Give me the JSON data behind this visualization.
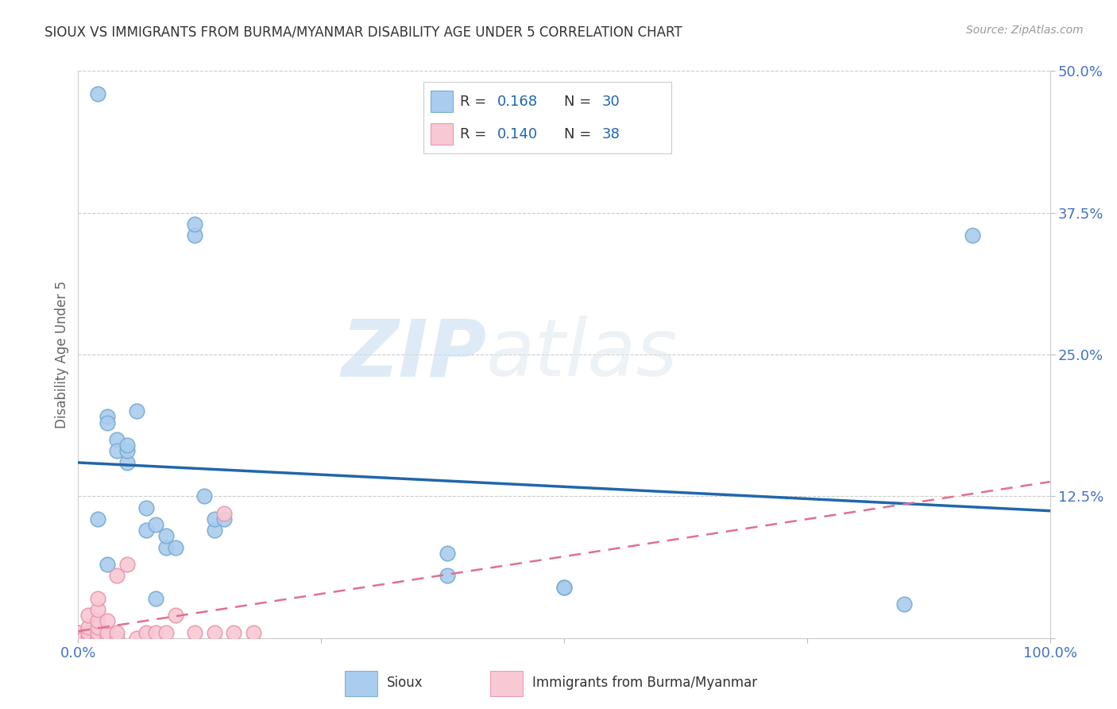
{
  "title": "SIOUX VS IMMIGRANTS FROM BURMA/MYANMAR DISABILITY AGE UNDER 5 CORRELATION CHART",
  "source": "Source: ZipAtlas.com",
  "ylabel": "Disability Age Under 5",
  "watermark_zip": "ZIP",
  "watermark_atlas": "atlas",
  "xlim": [
    0.0,
    1.0
  ],
  "ylim": [
    0.0,
    0.5
  ],
  "xticks": [
    0.0,
    0.25,
    0.5,
    0.75,
    1.0
  ],
  "xticklabels": [
    "0.0%",
    "",
    "",
    "",
    "100.0%"
  ],
  "yticks": [
    0.0,
    0.125,
    0.25,
    0.375,
    0.5
  ],
  "yticklabels": [
    "",
    "12.5%",
    "25.0%",
    "37.5%",
    "50.0%"
  ],
  "sioux_x": [
    0.02,
    0.03,
    0.03,
    0.04,
    0.04,
    0.05,
    0.05,
    0.05,
    0.06,
    0.07,
    0.07,
    0.08,
    0.08,
    0.09,
    0.09,
    0.1,
    0.12,
    0.12,
    0.13,
    0.14,
    0.14,
    0.15,
    0.38,
    0.38,
    0.5,
    0.5,
    0.85,
    0.92,
    0.02,
    0.03
  ],
  "sioux_y": [
    0.48,
    0.195,
    0.19,
    0.175,
    0.165,
    0.155,
    0.165,
    0.17,
    0.2,
    0.095,
    0.115,
    0.035,
    0.1,
    0.08,
    0.09,
    0.08,
    0.355,
    0.365,
    0.125,
    0.095,
    0.105,
    0.105,
    0.055,
    0.075,
    0.045,
    0.045,
    0.03,
    0.355,
    0.105,
    0.065
  ],
  "burma_x": [
    0.0,
    0.0,
    0.0,
    0.0,
    0.0,
    0.0,
    0.0,
    0.005,
    0.005,
    0.01,
    0.01,
    0.01,
    0.01,
    0.02,
    0.02,
    0.02,
    0.02,
    0.02,
    0.02,
    0.02,
    0.02,
    0.03,
    0.03,
    0.03,
    0.04,
    0.04,
    0.04,
    0.05,
    0.06,
    0.07,
    0.08,
    0.09,
    0.1,
    0.12,
    0.14,
    0.15,
    0.16,
    0.18
  ],
  "burma_y": [
    0.0,
    0.0,
    0.0,
    0.0,
    0.0,
    0.005,
    0.005,
    0.0,
    0.0,
    0.0,
    0.005,
    0.01,
    0.02,
    0.0,
    0.0,
    0.0,
    0.005,
    0.01,
    0.015,
    0.025,
    0.035,
    0.0,
    0.005,
    0.015,
    0.0,
    0.005,
    0.055,
    0.065,
    0.0,
    0.005,
    0.005,
    0.005,
    0.02,
    0.005,
    0.005,
    0.11,
    0.005,
    0.005
  ],
  "sioux_color": "#aaccee",
  "sioux_edge_color": "#7aadd4",
  "burma_color": "#f8c8d4",
  "burma_edge_color": "#e899b0",
  "sioux_line_color": "#2166ac",
  "burma_line_color": "#e07090",
  "title_color": "#333333",
  "tick_color": "#4472c4",
  "grid_color": "#cccccc",
  "source_color": "#999999",
  "ylabel_color": "#666666",
  "legend_r_color": "#333333",
  "legend_n_color": "#2166ac",
  "legend_val_color": "#2166ac"
}
